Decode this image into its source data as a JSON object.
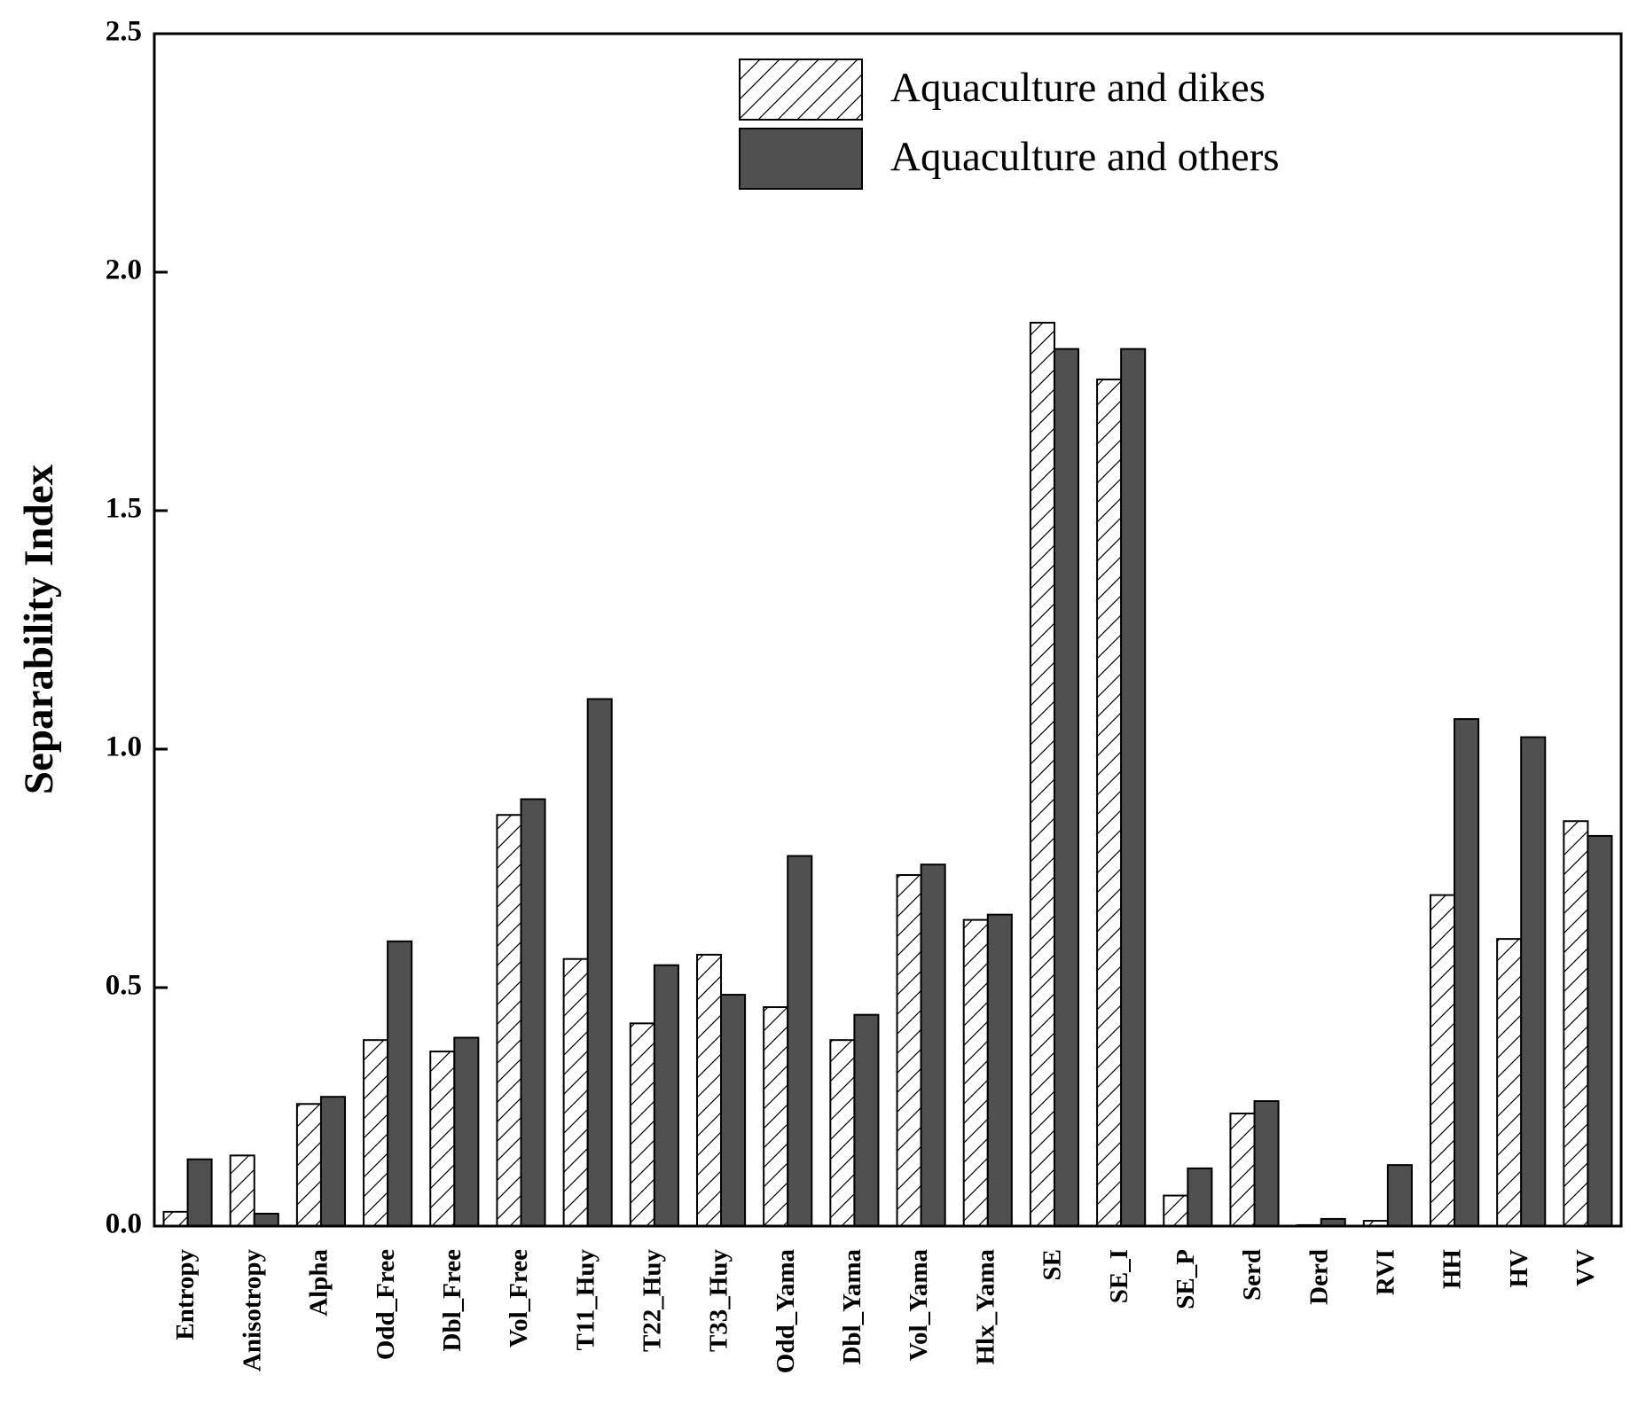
{
  "chart_data": {
    "type": "bar",
    "y_label": "Separability Index",
    "categories": [
      "Entropy",
      "Anisotropy",
      "Alpha",
      "Odd_Free",
      "Dbl_Free",
      "Vol_Free",
      "T11_Huy",
      "T22_Huy",
      "T33_Huy",
      "Odd_Yama",
      "Dbl_Yama",
      "Vol_Yama",
      "Hlx_Yama",
      "SE",
      "SE_I",
      "SE_P",
      "Serd",
      "Derd",
      "RVI",
      "HH",
      "HV",
      "VV"
    ],
    "series": [
      {
        "name": "Aquaculture and dikes",
        "color": "#ffffff",
        "hatch": true,
        "values": [
          0.03,
          0.148,
          0.256,
          0.39,
          0.366,
          0.862,
          0.56,
          0.425,
          0.569,
          0.459,
          0.39,
          0.736,
          0.642,
          1.894,
          1.775,
          0.064,
          0.236,
          0.002,
          0.011,
          0.694,
          0.602,
          0.849
        ]
      },
      {
        "name": "Aquaculture and others",
        "color": "#505050",
        "hatch": false,
        "values": [
          0.14,
          0.026,
          0.271,
          0.597,
          0.395,
          0.895,
          1.105,
          0.547,
          0.485,
          0.776,
          0.443,
          0.758,
          0.653,
          1.839,
          1.839,
          0.121,
          0.262,
          0.015,
          0.128,
          1.063,
          1.025,
          0.818
        ]
      }
    ],
    "ylim": [
      0,
      2.5
    ],
    "yticks": [
      {
        "value": 0,
        "label": "0.0"
      },
      0.5,
      {
        "value": 1,
        "label": "1.0"
      },
      1.5,
      {
        "value": 2,
        "label": "2.0"
      },
      2.5
    ],
    "legend": "top"
  }
}
